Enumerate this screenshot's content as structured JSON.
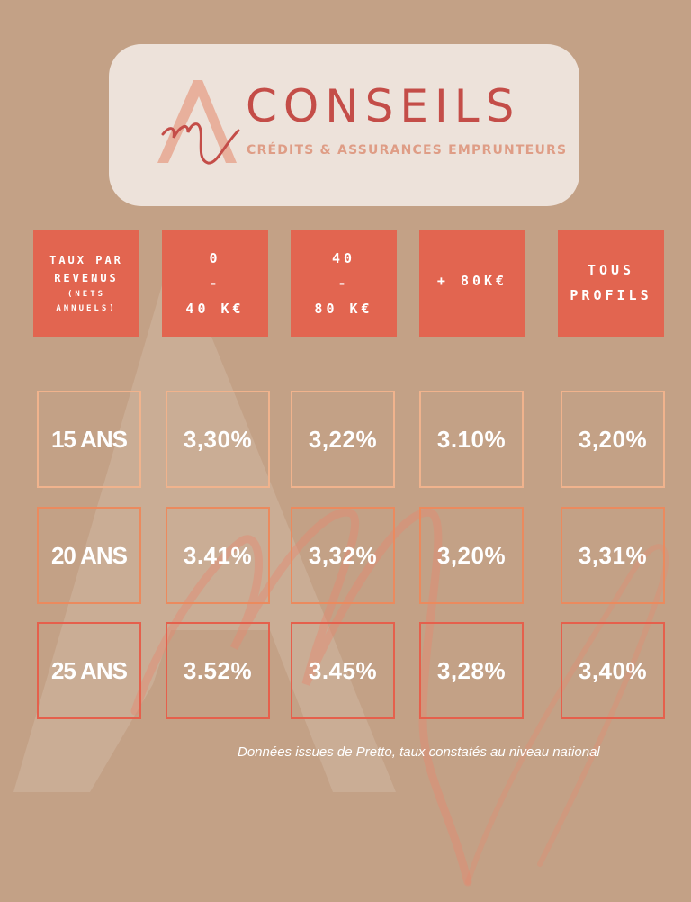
{
  "brand": {
    "title": "CONSEILS",
    "subtitle": "CRÉDITS & ASSURANCES EMPRUNTEURS",
    "colors": {
      "title": "#c44d48",
      "subtitle": "#df9d86",
      "card": "#ede2da"
    }
  },
  "header": {
    "first": {
      "line1": "TAUX PAR",
      "line2": "REVENUS",
      "line3": "(NETS",
      "line4": "ANNUELS)"
    },
    "col1": {
      "line1": "0",
      "line2": "-",
      "line3": "40 K€"
    },
    "col2": {
      "line1": "40",
      "line2": "-",
      "line3": "80 K€"
    },
    "col3": {
      "line1": "+ 80K€"
    },
    "col4": {
      "line1": "TOUS",
      "line2": "PROFILS"
    },
    "color": "#e26550"
  },
  "rows": [
    {
      "label": "15 ANS",
      "values": [
        "3,30%",
        "3,22%",
        "3.10%",
        "3,20%"
      ],
      "border_color": "#f0b38d"
    },
    {
      "label": "20 ANS",
      "values": [
        "3.41%",
        "3,32%",
        "3,20%",
        "3,31%"
      ],
      "border_color": "#eb8a5e"
    },
    {
      "label": "25 ANS",
      "values": [
        "3.52%",
        "3.45%",
        "3,28%",
        "3,40%"
      ],
      "border_color": "#e5604c"
    }
  ],
  "footnote": "Données issues de Pretto, taux constatés au niveau national",
  "background": "#c3a186"
}
